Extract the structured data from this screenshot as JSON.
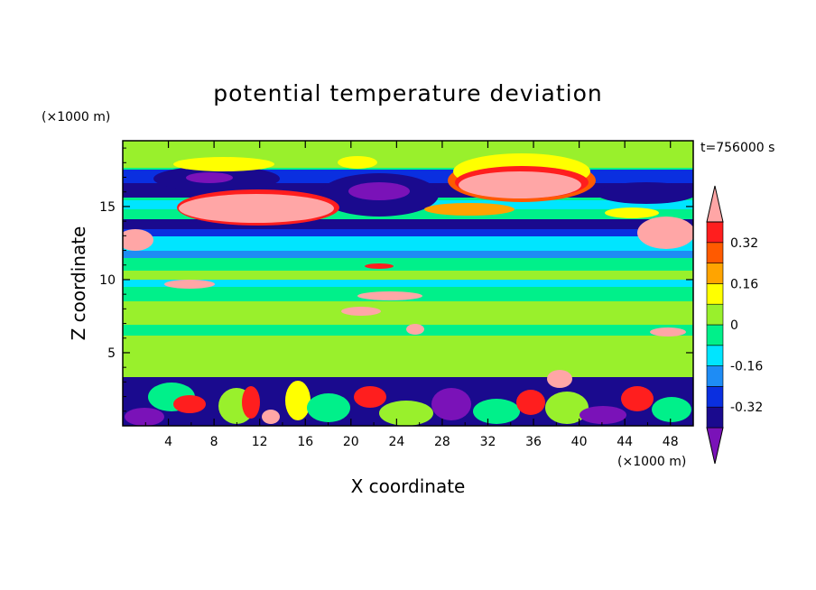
{
  "chart_data": {
    "type": "heatmap",
    "title": "potential temperature deviation",
    "xlabel": "X coordinate",
    "ylabel": "Z coordinate",
    "x_unit": "(×1000 m)",
    "y_unit": "(×1000 m)",
    "time_label": "t=756000 s",
    "xlim": [
      0,
      50
    ],
    "ylim": [
      0,
      19.5
    ],
    "x_ticks": [
      4,
      8,
      12,
      16,
      20,
      24,
      28,
      32,
      36,
      40,
      44,
      48
    ],
    "y_ticks": [
      5,
      10,
      15
    ],
    "colorbar": {
      "levels": [
        -0.4,
        -0.32,
        -0.24,
        -0.16,
        -0.08,
        0,
        0.08,
        0.16,
        0.24,
        0.32,
        0.4
      ],
      "tick_labels": [
        "-0.32",
        "-0.16",
        "0",
        "0.16",
        "0.32"
      ],
      "tick_values": [
        -0.32,
        -0.16,
        0,
        0.16,
        0.32
      ],
      "colors": [
        "#7a12b8",
        "#1a0a8e",
        "#0a2fe0",
        "#1e8cf5",
        "#00e5ff",
        "#00f08a",
        "#99f02c",
        "#ffff00",
        "#ffa400",
        "#ff5a00",
        "#ff1e1e",
        "#ffa6a6"
      ]
    }
  }
}
